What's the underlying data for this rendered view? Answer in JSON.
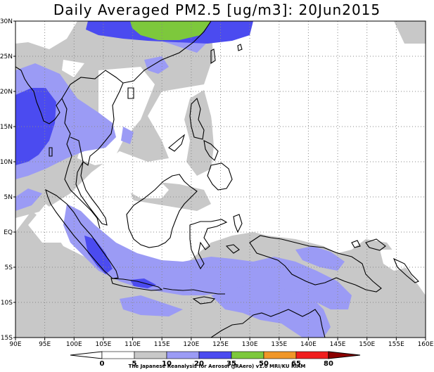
{
  "title": "Daily Averaged PM2.5 [ug/m3]: 20Jun2015",
  "map": {
    "lon_range": [
      90,
      160
    ],
    "lat_range": [
      -15,
      30
    ],
    "lon_ticks": [
      {
        "v": 90,
        "t": "90E"
      },
      {
        "v": 95,
        "t": "95E"
      },
      {
        "v": 100,
        "t": "100E"
      },
      {
        "v": 105,
        "t": "105E"
      },
      {
        "v": 110,
        "t": "110E"
      },
      {
        "v": 115,
        "t": "115E"
      },
      {
        "v": 120,
        "t": "120E"
      },
      {
        "v": 125,
        "t": "125E"
      },
      {
        "v": 130,
        "t": "130E"
      },
      {
        "v": 135,
        "t": "135E"
      },
      {
        "v": 140,
        "t": "140E"
      },
      {
        "v": 145,
        "t": "145E"
      },
      {
        "v": 150,
        "t": "150E"
      },
      {
        "v": 155,
        "t": "155E"
      },
      {
        "v": 160,
        "t": "160E"
      }
    ],
    "lat_ticks": [
      {
        "v": 30,
        "t": "30N"
      },
      {
        "v": 25,
        "t": "25N"
      },
      {
        "v": 20,
        "t": "20N"
      },
      {
        "v": 15,
        "t": "15N"
      },
      {
        "v": 10,
        "t": "10N"
      },
      {
        "v": 5,
        "t": "5N"
      },
      {
        "v": 0,
        "t": "EQ"
      },
      {
        "v": -5,
        "t": "5S"
      },
      {
        "v": -10,
        "t": "10S"
      },
      {
        "v": -15,
        "t": "15S"
      }
    ],
    "grid": "dotted",
    "colors": {
      "c5_10": "#c8c8c8",
      "c10_20": "#9b9bf5",
      "c20_35": "#4b4bf0",
      "c35_50": "#7dc83c",
      "ocean_low": "#ffffff",
      "coast": "#000000"
    }
  },
  "colorbar": {
    "levels": [
      "0",
      "5",
      "10",
      "20",
      "35",
      "50",
      "65",
      "80"
    ],
    "colors": [
      "#ffffff",
      "#c8c8c8",
      "#9b9bf5",
      "#4b4bf0",
      "#7dc83c",
      "#f09628",
      "#f01e1e"
    ],
    "below_color": "#ffffff",
    "above_color": "#8c0000"
  },
  "credit": "The Japanese Reanalysis for Aerosol (JRAero) v1.0 MRI/KU RIAM"
}
